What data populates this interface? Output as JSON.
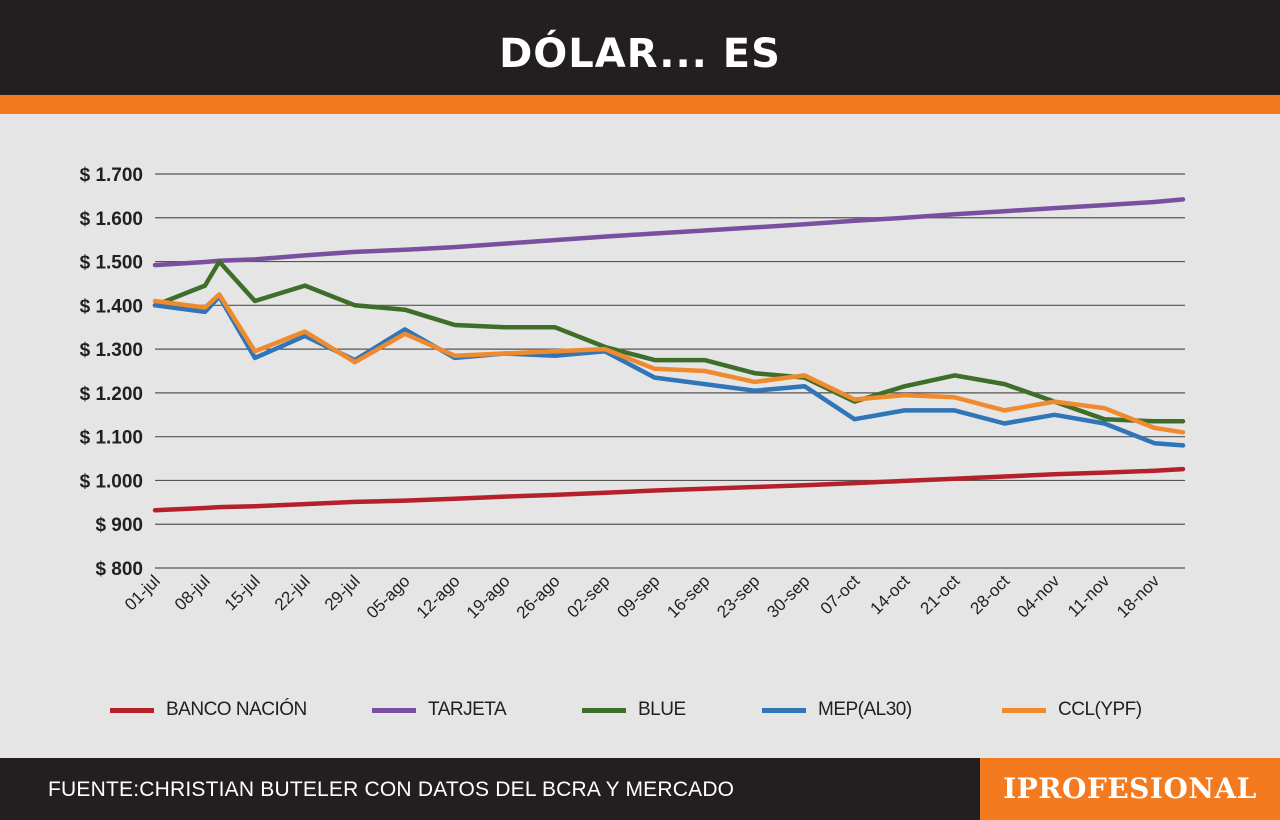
{
  "header": {
    "title": "DÓLAR... ES"
  },
  "footer": {
    "source": "FUENTE:CHRISTIAN BUTELER CON DATOS DEL BCRA Y MERCADO",
    "brand": "IPROFESIONAL"
  },
  "colors": {
    "header_bg": "#231f20",
    "accent": "#f47a20",
    "plot_bg": "#e5e5e5",
    "gridline": "#555555"
  },
  "chart_data": {
    "type": "line",
    "title": "DÓLAR... ES",
    "xlabel": "",
    "ylabel": "",
    "ylim": [
      800,
      1700
    ],
    "y_ticks": [
      800,
      900,
      1000,
      1100,
      1200,
      1300,
      1400,
      1500,
      1600,
      1700
    ],
    "y_tick_labels": [
      "$ 800",
      "$ 900",
      "$ 1.000",
      "$ 1.100",
      "$ 1.200",
      "$ 1.300",
      "$ 1.400",
      "$ 1.500",
      "$ 1.600",
      "$ 1.700"
    ],
    "grid": true,
    "legend_position": "bottom",
    "x_tick_labels": [
      "01-jul",
      "08-jul",
      "15-jul",
      "22-jul",
      "29-jul",
      "05-ago",
      "12-ago",
      "19-ago",
      "26-ago",
      "02-sep",
      "09-sep",
      "16-sep",
      "23-sep",
      "30-sep",
      "07-oct",
      "14-oct",
      "21-oct",
      "28-oct",
      "04-nov",
      "11-nov",
      "18-nov"
    ],
    "x": [
      "01-jul",
      "08-jul",
      "10-jul",
      "15-jul",
      "22-jul",
      "29-jul",
      "05-ago",
      "12-ago",
      "19-ago",
      "26-ago",
      "02-sep",
      "09-sep",
      "16-sep",
      "23-sep",
      "30-sep",
      "07-oct",
      "14-oct",
      "21-oct",
      "28-oct",
      "04-nov",
      "11-nov",
      "18-nov",
      "22-nov"
    ],
    "series": [
      {
        "name": "BANCO NACIÓN",
        "color": "#b5212b",
        "values": [
          932,
          937,
          939,
          941,
          946,
          951,
          954,
          958,
          963,
          967,
          972,
          977,
          981,
          985,
          989,
          994,
          999,
          1004,
          1009,
          1014,
          1018,
          1022,
          1026
        ]
      },
      {
        "name": "TARJETA",
        "color": "#7b4fa0",
        "values": [
          1492,
          1499,
          1502,
          1505,
          1514,
          1522,
          1527,
          1533,
          1541,
          1549,
          1557,
          1564,
          1571,
          1578,
          1585,
          1593,
          1600,
          1608,
          1615,
          1622,
          1629,
          1636,
          1642
        ]
      },
      {
        "name": "BLUE",
        "color": "#3f6e2a",
        "values": [
          1400,
          1445,
          1500,
          1410,
          1445,
          1400,
          1390,
          1355,
          1350,
          1350,
          1305,
          1275,
          1275,
          1245,
          1235,
          1180,
          1215,
          1240,
          1220,
          1180,
          1140,
          1135,
          1135
        ]
      },
      {
        "name": "MEP(AL30)",
        "color": "#2f75b7",
        "values": [
          1400,
          1385,
          1420,
          1280,
          1330,
          1275,
          1345,
          1280,
          1290,
          1285,
          1295,
          1235,
          1220,
          1205,
          1215,
          1140,
          1160,
          1160,
          1130,
          1150,
          1130,
          1085,
          1080
        ]
      },
      {
        "name": "CCL(YPF)",
        "color": "#f08a2e",
        "values": [
          1410,
          1395,
          1425,
          1295,
          1340,
          1270,
          1335,
          1285,
          1290,
          1295,
          1300,
          1255,
          1250,
          1225,
          1240,
          1185,
          1195,
          1190,
          1160,
          1180,
          1165,
          1120,
          1110
        ]
      }
    ]
  }
}
